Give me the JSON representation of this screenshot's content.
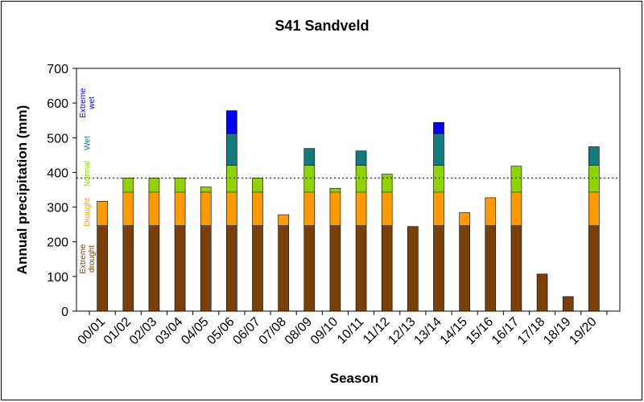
{
  "chart_data": {
    "type": "bar",
    "title": "S41 Sandveld",
    "xlabel": "Season",
    "ylabel": "Annual precipitation (mm)",
    "ylim": [
      0,
      700
    ],
    "yticks": [
      0,
      100,
      200,
      300,
      400,
      500,
      600,
      700
    ],
    "categories": [
      "00/01",
      "01/02",
      "02/03",
      "03/04",
      "04/05",
      "05/06",
      "06/07",
      "07/08",
      "08/09",
      "09/10",
      "10/11",
      "11/12",
      "12/13",
      "13/14",
      "14/15",
      "15/16",
      "16/17",
      "17/18",
      "18/19",
      "19/20"
    ],
    "values": [
      317,
      384,
      384,
      384,
      358,
      578,
      384,
      278,
      469,
      354,
      462,
      395,
      244,
      544,
      284,
      327,
      418,
      107,
      42,
      474
    ],
    "reference_line": 384,
    "bands": [
      {
        "name": "Extreme drought",
        "from": 0,
        "to": 247,
        "color": "#7b3f0a"
      },
      {
        "name": "Drought",
        "from": 247,
        "to": 343,
        "color": "#ff9900"
      },
      {
        "name": "Normal",
        "from": 343,
        "to": 420,
        "color": "#8fd400"
      },
      {
        "name": "Wet",
        "from": 420,
        "to": 511,
        "color": "#137a7d"
      },
      {
        "name": "Extreme wet",
        "from": 511,
        "to": 1000,
        "color": "#0000ff"
      }
    ],
    "grid": false,
    "band_labels": [
      {
        "lines": [
          "Extreme",
          "drought"
        ],
        "color": "#7b3f0a"
      },
      {
        "lines": [
          "Drought"
        ],
        "color": "#ff9900"
      },
      {
        "lines": [
          "Normal"
        ],
        "color": "#8fd400"
      },
      {
        "lines": [
          "Wet"
        ],
        "color": "#137a7d"
      },
      {
        "lines": [
          "Extreme",
          "wet"
        ],
        "color": "#0000ff"
      }
    ]
  }
}
